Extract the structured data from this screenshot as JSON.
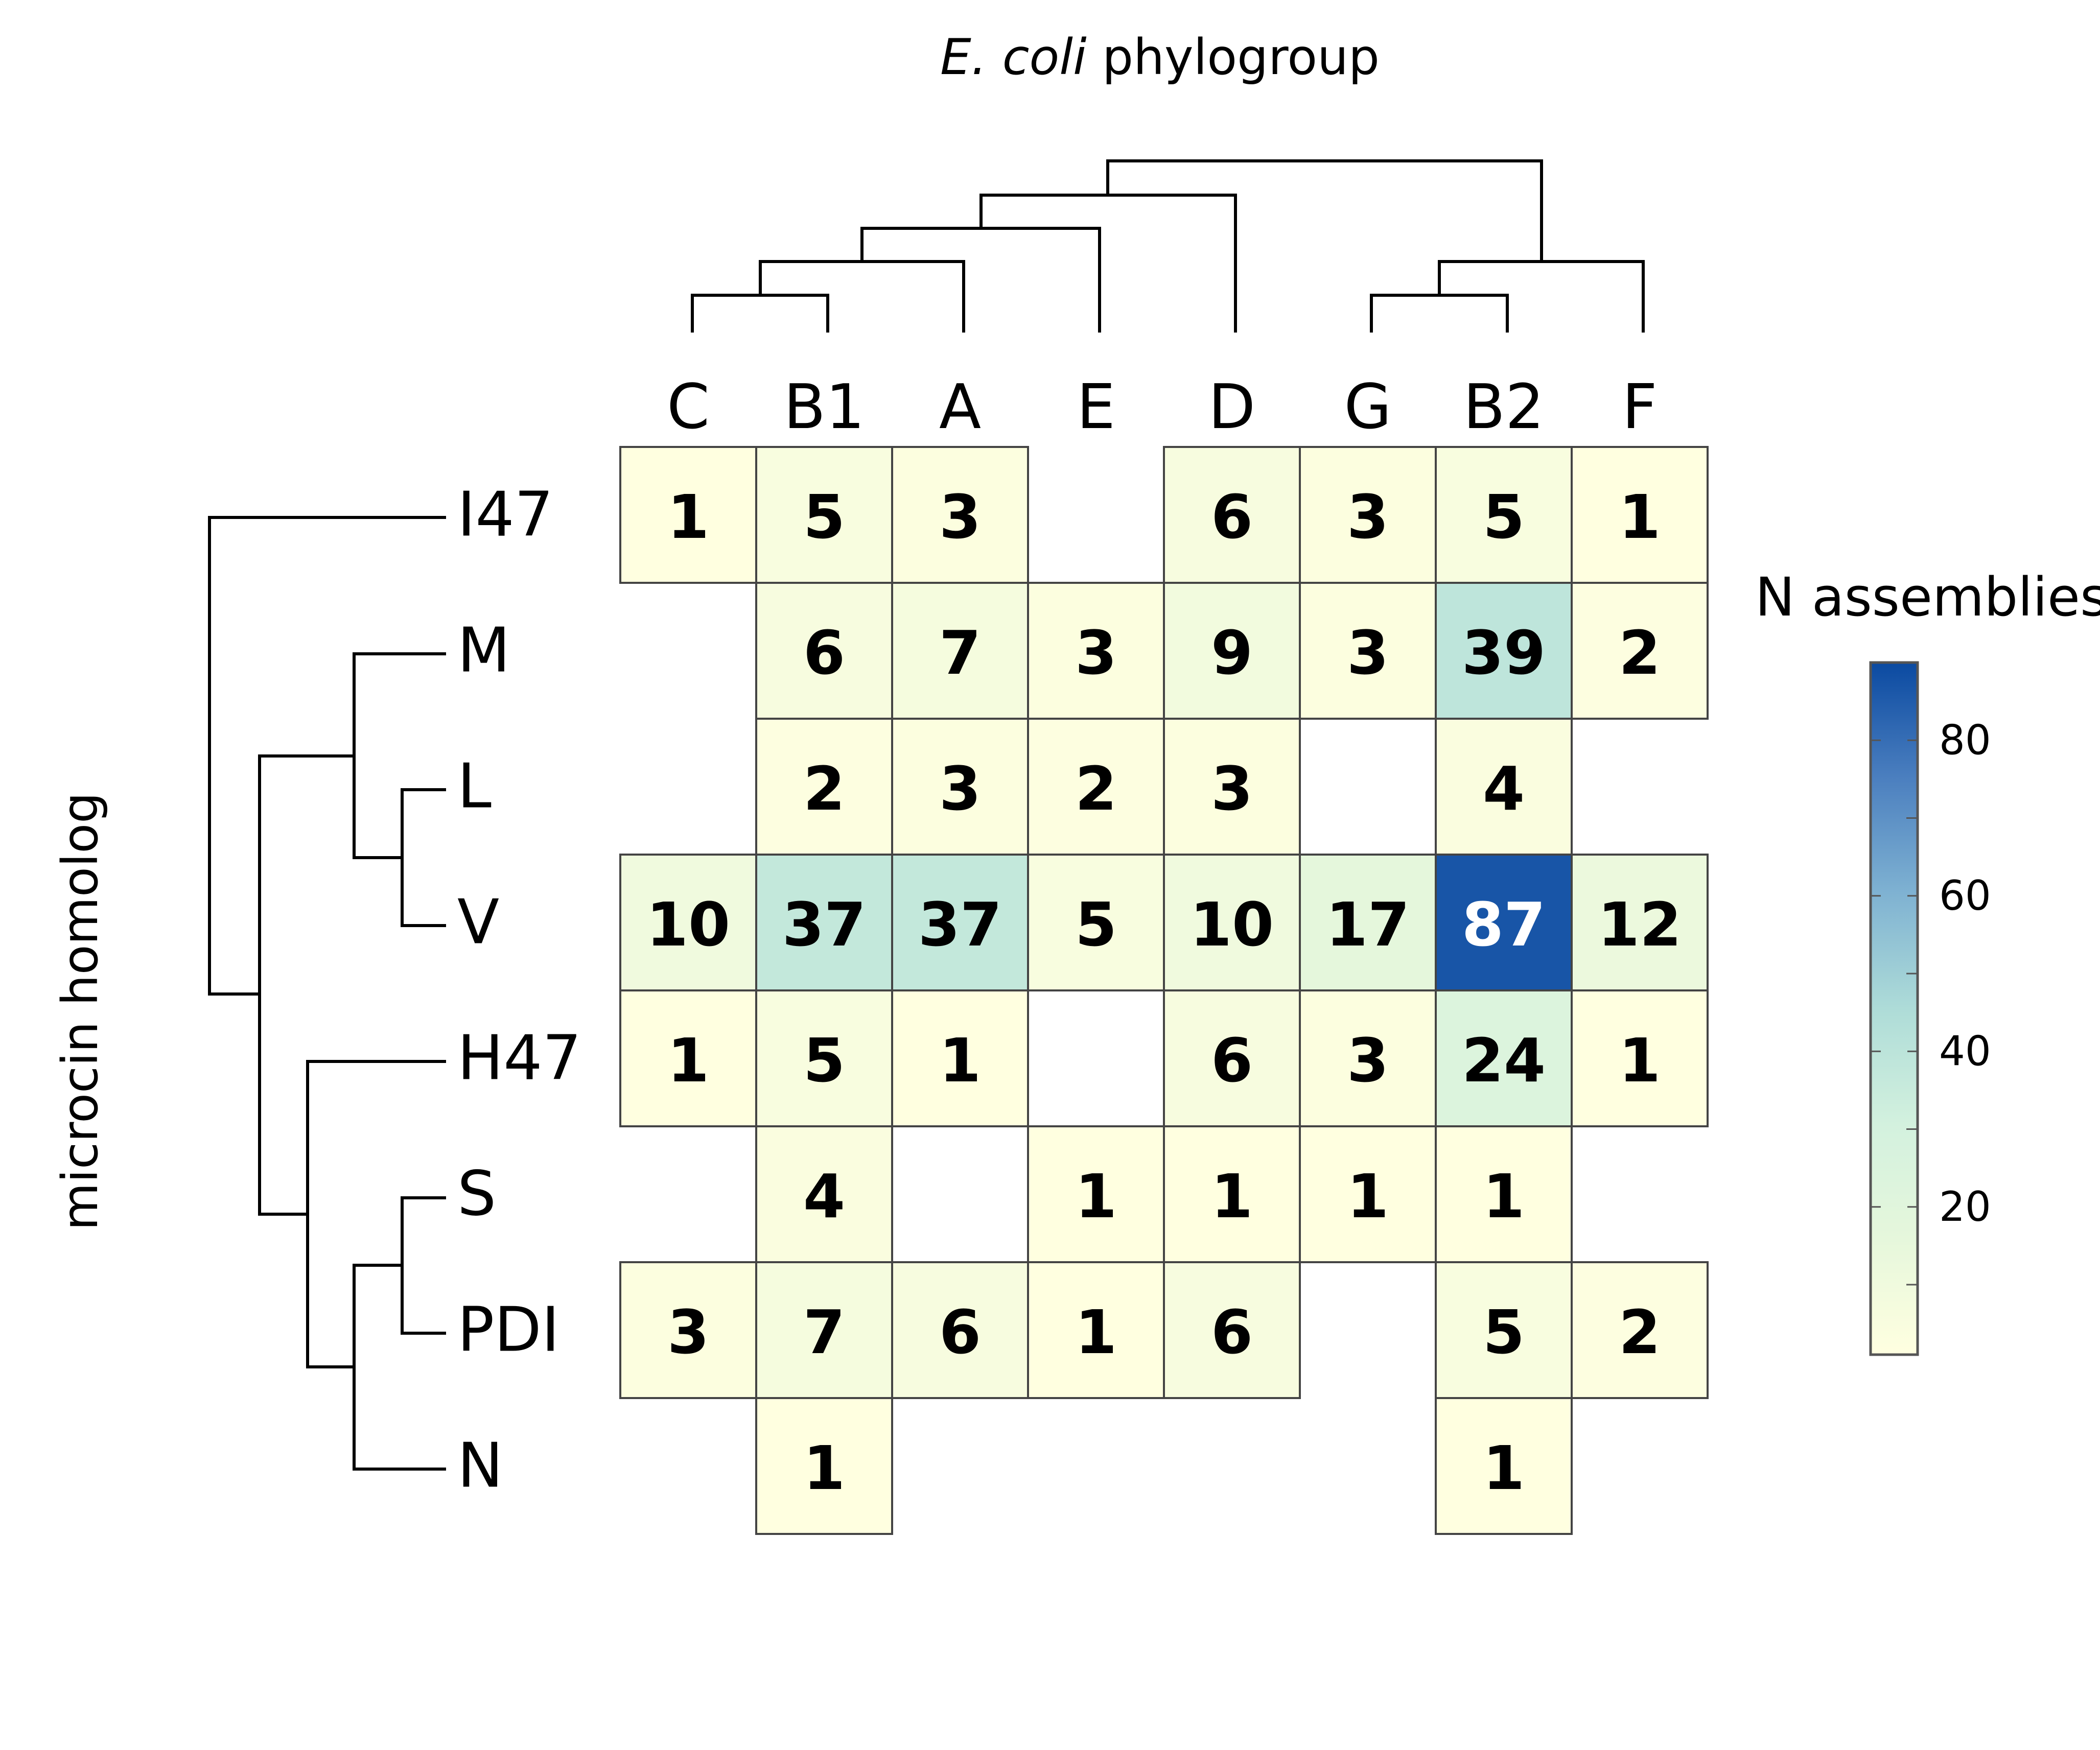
{
  "chart_data": {
    "type": "heatmap",
    "title": "",
    "xlabel_italic": "E. coli",
    "xlabel_rest": " phylogroup",
    "ylabel": "microcin homolog",
    "columns": [
      "C",
      "B1",
      "A",
      "E",
      "D",
      "G",
      "B2",
      "F"
    ],
    "rows": [
      "I47",
      "M",
      "L",
      "V",
      "H47",
      "S",
      "PDI",
      "N"
    ],
    "values": [
      [
        1,
        5,
        3,
        null,
        6,
        3,
        5,
        1
      ],
      [
        null,
        6,
        7,
        3,
        9,
        3,
        39,
        2
      ],
      [
        null,
        2,
        3,
        2,
        3,
        null,
        4,
        null
      ],
      [
        10,
        37,
        37,
        5,
        10,
        17,
        87,
        12
      ],
      [
        1,
        5,
        1,
        null,
        6,
        3,
        24,
        1
      ],
      [
        null,
        4,
        null,
        1,
        1,
        1,
        1,
        null
      ],
      [
        3,
        7,
        6,
        1,
        6,
        null,
        5,
        2
      ],
      [
        null,
        1,
        null,
        null,
        null,
        null,
        1,
        null
      ]
    ],
    "legend": {
      "title": "N assemblies",
      "min": 1,
      "max": 90,
      "ticks": [
        20,
        40,
        60,
        80
      ],
      "minor_ticks": [
        10,
        30,
        50,
        70
      ]
    },
    "colorscale": [
      "#ffffe0",
      "#e6f7dc",
      "#d3f1de",
      "#aedcd8",
      "#7fb2d2",
      "#4b7fbf",
      "#0b4aa1"
    ],
    "column_dendrogram": "((((C,B1),A),E),D),((G,B2),F)",
    "row_dendrogram": "(I47,(((M,(L,V)),((H47,((S,PDI),N))))))"
  }
}
